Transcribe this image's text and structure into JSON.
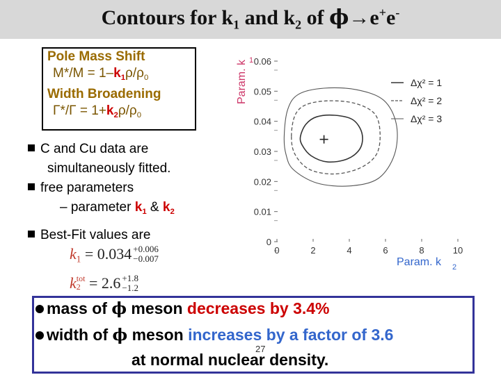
{
  "title": {
    "pre": "Contours for k",
    "sub1": "1",
    "mid": " and k",
    "sub2": "2",
    "of": " of ",
    "phi": "ϕ",
    "arrow": "→",
    "e1": "e",
    "sup1": "+",
    "e2": "e",
    "sup2": "-"
  },
  "box": {
    "line1": "Pole Mass Shift",
    "line2_a": "M*/M = 1–",
    "line2_k": "k",
    "line2_ksub": "1",
    "line2_b": "ρ/ρ",
    "line2_bsub": "0",
    "line3": "Width Broadening",
    "line4_a": "Γ*/Γ = 1+",
    "line4_k": "k",
    "line4_ksub": "2",
    "line4_b": "ρ/ρ",
    "line4_bsub": "0"
  },
  "bullets": {
    "b1_line1": "C and Cu data are",
    "b1_line2": "simultaneously fitted.",
    "b2": "free parameters",
    "b2_sub_a": "– parameter ",
    "b2_k1": "k",
    "b2_k1sub": "1",
    "b2_amp": " & ",
    "b2_k2": "k",
    "b2_k2sub": "2",
    "b3": "Best-Fit values are"
  },
  "formula1": {
    "var": "k",
    "varsub": "1",
    "eq": " = 0.034",
    "up": "+0.006",
    "down": "−0.007"
  },
  "formula2": {
    "var": "k",
    "varsub": "2",
    "varsup": "tot",
    "eq": " = 2.6",
    "up": "+1.8",
    "down": "−1.2"
  },
  "bottom": {
    "l1_a": "mass of ",
    "l1_phi": "ϕ",
    "l1_b": " meson ",
    "l1_c": "decreases by 3.4%",
    "l2_a": "width of ",
    "l2_phi": "ϕ",
    "l2_b": " meson ",
    "l2_c": "increases by a factor of 3.6",
    "l3": "at normal nuclear density.",
    "page_number": "27"
  },
  "chart_data": {
    "type": "contour",
    "xlabel": "Param. k2",
    "ylabel": "Param. k1",
    "xlim": [
      0,
      10
    ],
    "ylim": [
      0,
      0.06
    ],
    "xticks": [
      0,
      2,
      4,
      6,
      8,
      10
    ],
    "yticks": [
      0,
      0.01,
      0.02,
      0.03,
      0.04,
      0.05,
      0.06
    ],
    "best_fit": {
      "x": 2.6,
      "y": 0.034,
      "marker": "+"
    },
    "contours": [
      {
        "name": "Δχ² = 1",
        "style": "solid",
        "points": [
          [
            1.3,
            0.035
          ],
          [
            1.6,
            0.039
          ],
          [
            2.2,
            0.0415
          ],
          [
            3.2,
            0.042
          ],
          [
            4.2,
            0.0405
          ],
          [
            4.7,
            0.036
          ],
          [
            4.6,
            0.031
          ],
          [
            3.9,
            0.0275
          ],
          [
            2.8,
            0.0265
          ],
          [
            1.9,
            0.0285
          ],
          [
            1.4,
            0.032
          ]
        ]
      },
      {
        "name": "Δχ² = 2",
        "style": "dashed",
        "points": [
          [
            0.8,
            0.035
          ],
          [
            1.0,
            0.042
          ],
          [
            1.6,
            0.0455
          ],
          [
            2.8,
            0.0468
          ],
          [
            4.3,
            0.046
          ],
          [
            5.4,
            0.0425
          ],
          [
            5.7,
            0.036
          ],
          [
            5.5,
            0.029
          ],
          [
            4.6,
            0.0245
          ],
          [
            3.2,
            0.0225
          ],
          [
            1.8,
            0.024
          ],
          [
            1.0,
            0.029
          ]
        ]
      },
      {
        "name": "Δχ² = 3",
        "style": "solid-thin",
        "points": [
          [
            0.4,
            0.035
          ],
          [
            0.6,
            0.044
          ],
          [
            1.2,
            0.049
          ],
          [
            2.6,
            0.051
          ],
          [
            4.4,
            0.0505
          ],
          [
            5.9,
            0.047
          ],
          [
            6.6,
            0.039
          ],
          [
            6.5,
            0.029
          ],
          [
            5.6,
            0.021
          ],
          [
            4.0,
            0.0185
          ],
          [
            2.2,
            0.0195
          ],
          [
            0.9,
            0.024
          ],
          [
            0.5,
            0.029
          ]
        ]
      }
    ],
    "legend": [
      "Δχ² = 1",
      "Δχ² = 2",
      "Δχ² = 3"
    ]
  }
}
